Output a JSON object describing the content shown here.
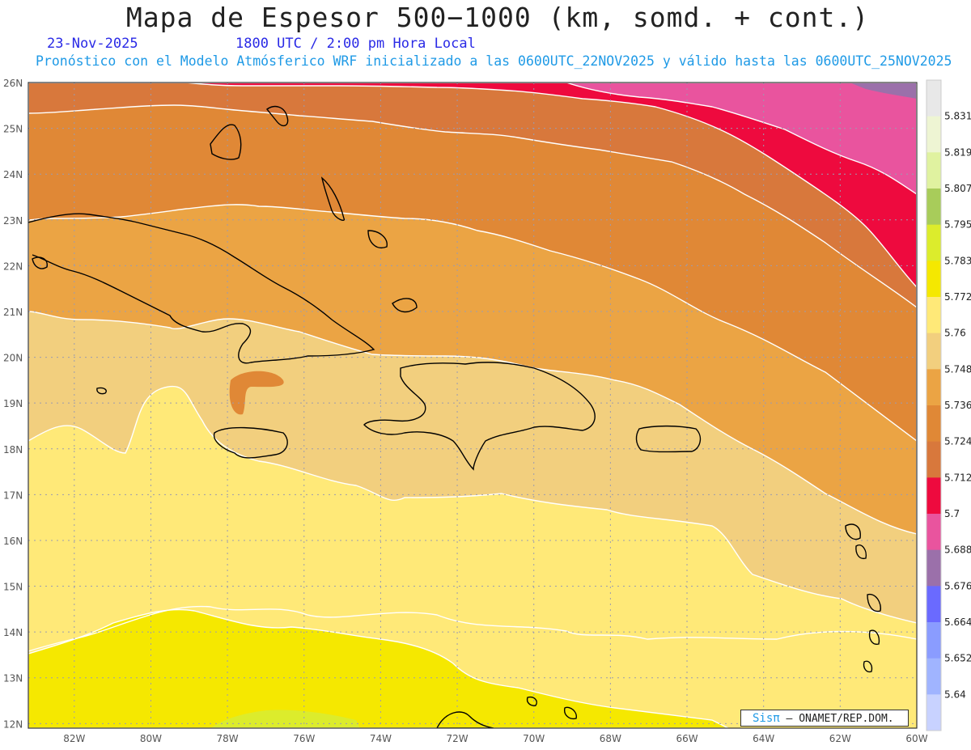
{
  "title": "Mapa de Espesor 500−1000 (km, somd. + cont.)",
  "date": "23-Nov-2025",
  "time": "1800 UTC / 2:00 pm Hora Local",
  "model_info": "Pronóstico con el Modelo Atmósferico WRF inicializado a las 0600UTC_22NOV2025 y válido hasta las  0600UTC_25NOV2025",
  "credit": {
    "brand": "Sisπ",
    "org": " – ONAMET/REP.DOM."
  },
  "lat_labels": [
    "26N",
    "25N",
    "24N",
    "23N",
    "22N",
    "21N",
    "20N",
    "19N",
    "18N",
    "17N",
    "16N",
    "15N",
    "14N",
    "13N",
    "12N"
  ],
  "lon_labels": [
    "82W",
    "80W",
    "78W",
    "76W",
    "74W",
    "72W",
    "70W",
    "68W",
    "66W",
    "64W",
    "62W",
    "60W"
  ],
  "colorbar": {
    "labels": [
      "5.831",
      "5.819",
      "5.807",
      "5.795",
      "5.783",
      "5.772",
      "5.76",
      "5.748",
      "5.736",
      "5.724",
      "5.712",
      "5.7",
      "5.688",
      "5.676",
      "5.664",
      "5.652",
      "5.64"
    ],
    "colors": [
      "#e8e8e8",
      "#eef5d3",
      "#e0f2a0",
      "#a8cc5a",
      "#dcec2c",
      "#f5e800",
      "#ffe978",
      "#f2cf7e",
      "#eba444",
      "#e08836",
      "#d8783c",
      "#ee0a3e",
      "#e9549e",
      "#9b70aa",
      "#6a6aff",
      "#8a9cff",
      "#a0b4ff",
      "#c8d2ff"
    ]
  },
  "map_colors": {
    "c5664": "#f5e800",
    "c5676": "#dcec2c",
    "c5688": "#ffe978",
    "c5700": "#f2cf7e",
    "c5712": "#eba444",
    "c5724": "#e08836",
    "c5736": "#d8783c",
    "c5748": "#ee0a3e",
    "c5760": "#e9549e",
    "c5772": "#9b70aa",
    "contour": "#ffffff",
    "coast": "#000000",
    "grid": "#9b9bb0"
  }
}
